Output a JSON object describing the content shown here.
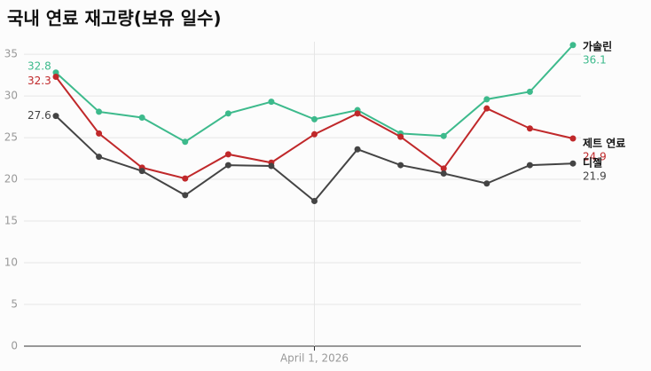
{
  "chart_data": {
    "type": "line",
    "title": "국내 연료 재고량(보유 일수)",
    "categories": [
      null,
      null,
      null,
      null,
      null,
      null,
      "April 1, 2026",
      null,
      null,
      null,
      null,
      null,
      null
    ],
    "series": [
      {
        "name": "가솔린",
        "color": "#3dba8c",
        "values": [
          32.8,
          28.1,
          27.4,
          24.5,
          27.9,
          29.3,
          27.2,
          28.3,
          25.5,
          25.2,
          29.6,
          30.5,
          36.1
        ]
      },
      {
        "name": "제트 연료",
        "color": "#c0282a",
        "values": [
          32.3,
          25.5,
          21.4,
          20.1,
          23.0,
          22.0,
          25.4,
          27.9,
          25.1,
          21.3,
          28.5,
          26.1,
          24.9
        ]
      },
      {
        "name": "디젤",
        "color": "#444444",
        "values": [
          27.6,
          22.7,
          21.0,
          18.1,
          21.7,
          21.6,
          17.4,
          23.6,
          21.7,
          20.7,
          19.5,
          21.7,
          21.9
        ]
      }
    ],
    "ylim": [
      0,
      36.5
    ],
    "yticks": [
      0,
      5,
      10,
      15,
      20,
      25,
      30,
      35
    ],
    "grid": true
  }
}
